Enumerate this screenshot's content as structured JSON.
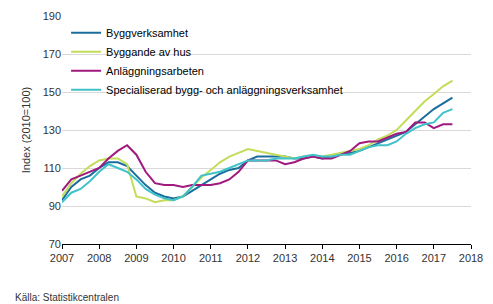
{
  "chart_data": {
    "type": "line",
    "y_label": "Index (2010=100)",
    "annotations": [
      "Källa: Statistikcentralen"
    ],
    "x": [
      2007,
      2007.25,
      2007.5,
      2007.75,
      2008,
      2008.25,
      2008.5,
      2008.75,
      2009,
      2009.25,
      2009.5,
      2009.75,
      2010,
      2010.25,
      2010.5,
      2010.75,
      2011,
      2011.25,
      2011.5,
      2011.75,
      2012,
      2012.25,
      2012.5,
      2012.75,
      2013,
      2013.25,
      2013.5,
      2013.75,
      2014,
      2014.25,
      2014.5,
      2014.75,
      2015,
      2015.25,
      2015.5,
      2015.75,
      2016,
      2016.25,
      2016.5,
      2016.75,
      2017,
      2017.25,
      2017.5
    ],
    "series": [
      {
        "name": "Byggverksamhet",
        "color": "#1b6d9b",
        "values": [
          93,
          100,
          104,
          106,
          110,
          113,
          113,
          111,
          106,
          101,
          97,
          95,
          94,
          95,
          98,
          101,
          104,
          107,
          109,
          110,
          114,
          116,
          116,
          116,
          116,
          115,
          115,
          116,
          115,
          116,
          117,
          118,
          119,
          121,
          123,
          125,
          127,
          129,
          133,
          137,
          141,
          144,
          147
        ]
      },
      {
        "name": "Byggande av hus",
        "color": "#c3dc5a",
        "values": [
          95,
          102,
          107,
          111,
          114,
          115,
          115,
          112,
          95,
          94,
          92,
          93,
          93,
          95,
          100,
          105,
          109,
          113,
          116,
          118,
          120,
          119,
          118,
          117,
          116,
          115,
          116,
          116,
          116,
          117,
          118,
          119,
          120,
          122,
          125,
          127,
          130,
          135,
          140,
          145,
          149,
          153,
          156
        ]
      },
      {
        "name": "Anläggningsarbeten",
        "color": "#a0197f",
        "values": [
          98,
          104,
          106,
          108,
          110,
          115,
          119,
          122,
          117,
          108,
          102,
          101,
          101,
          100,
          101,
          101,
          101,
          102,
          104,
          108,
          114,
          114,
          114,
          114,
          112,
          113,
          115,
          116,
          115,
          115,
          117,
          119,
          123,
          124,
          124,
          126,
          128,
          129,
          134,
          134,
          131,
          133,
          133
        ]
      },
      {
        "name": "Specialiserad bygg- och anläggningsverksamhet",
        "color": "#3fc2c9",
        "values": [
          92,
          97,
          99,
          103,
          108,
          112,
          110,
          108,
          104,
          99,
          96,
          94,
          93,
          95,
          100,
          106,
          107,
          108,
          110,
          112,
          114,
          114,
          114,
          115,
          115,
          115,
          116,
          117,
          116,
          116,
          117,
          117,
          119,
          121,
          122,
          122,
          124,
          128,
          131,
          133,
          134,
          139,
          141
        ]
      }
    ],
    "xlim": [
      2007,
      2018
    ],
    "xticks": [
      2007,
      2008,
      2009,
      2010,
      2011,
      2012,
      2013,
      2014,
      2015,
      2016,
      2017,
      2018
    ],
    "ylim": [
      70,
      190
    ],
    "yticks": [
      70,
      90,
      110,
      130,
      150,
      170,
      190
    ],
    "grid": true,
    "legend": "top-left"
  }
}
